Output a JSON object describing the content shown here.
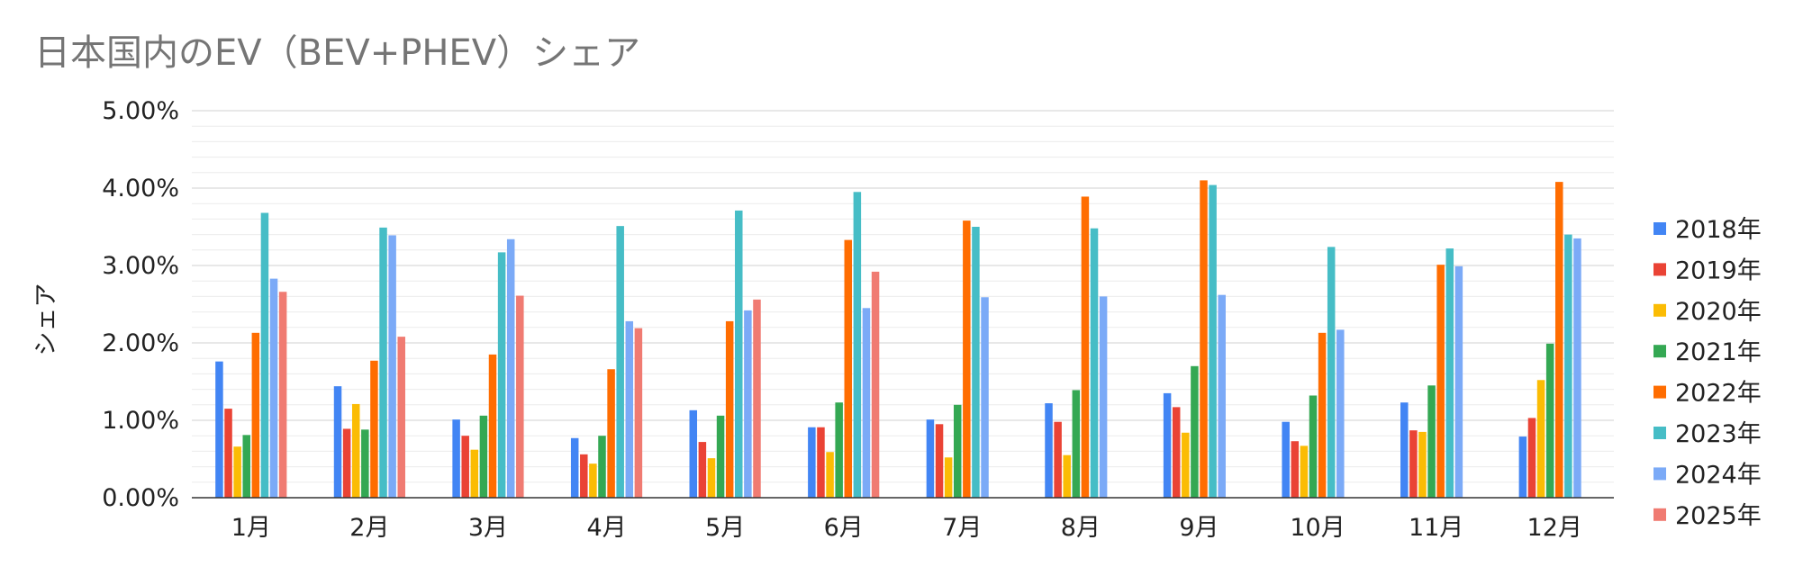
{
  "chart_data": {
    "type": "bar",
    "title": "日本国内のEV（BEV+PHEV）シェア",
    "xlabel": "",
    "ylabel": "シェア",
    "ylim": [
      0,
      5
    ],
    "yticks": [
      "0.00%",
      "1.00%",
      "2.00%",
      "3.00%",
      "4.00%",
      "5.00%"
    ],
    "grid": true,
    "legend_position": "right",
    "categories": [
      "1月",
      "2月",
      "3月",
      "4月",
      "5月",
      "6月",
      "7月",
      "8月",
      "9月",
      "10月",
      "11月",
      "12月"
    ],
    "series": [
      {
        "name": "2018年",
        "color": "#4285f4",
        "values": [
          1.76,
          1.44,
          1.01,
          0.77,
          1.13,
          0.91,
          1.01,
          1.22,
          1.35,
          0.98,
          1.23,
          0.79
        ]
      },
      {
        "name": "2019年",
        "color": "#ea4335",
        "values": [
          1.15,
          0.89,
          0.8,
          0.56,
          0.72,
          0.91,
          0.95,
          0.98,
          1.17,
          0.73,
          0.87,
          1.03
        ]
      },
      {
        "name": "2020年",
        "color": "#fbbc04",
        "values": [
          0.66,
          1.21,
          0.62,
          0.44,
          0.51,
          0.59,
          0.52,
          0.55,
          0.84,
          0.67,
          0.85,
          1.52
        ]
      },
      {
        "name": "2021年",
        "color": "#34a853",
        "values": [
          0.81,
          0.88,
          1.06,
          0.8,
          1.06,
          1.23,
          1.2,
          1.39,
          1.7,
          1.32,
          1.45,
          1.99
        ]
      },
      {
        "name": "2022年",
        "color": "#ff6d01",
        "values": [
          2.13,
          1.77,
          1.85,
          1.66,
          2.28,
          3.33,
          3.58,
          3.89,
          4.1,
          2.13,
          3.01,
          4.08
        ]
      },
      {
        "name": "2023年",
        "color": "#46bdc6",
        "values": [
          3.68,
          3.49,
          3.17,
          3.51,
          3.71,
          3.95,
          3.5,
          3.48,
          4.04,
          3.24,
          3.22,
          3.4
        ]
      },
      {
        "name": "2024年",
        "color": "#7baaf7",
        "values": [
          2.83,
          3.39,
          3.34,
          2.28,
          2.42,
          2.45,
          2.59,
          2.6,
          2.62,
          2.17,
          2.99,
          3.35
        ]
      },
      {
        "name": "2025年",
        "color": "#f07b72",
        "values": [
          2.66,
          2.08,
          2.61,
          2.19,
          2.56,
          2.92,
          null,
          null,
          null,
          null,
          null,
          null
        ]
      }
    ]
  }
}
